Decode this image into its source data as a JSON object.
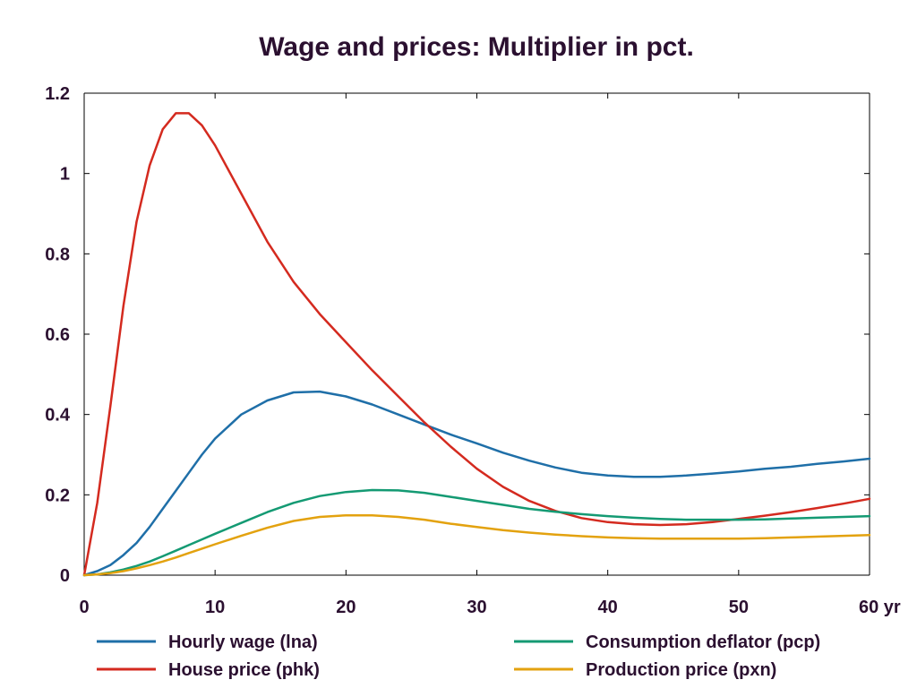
{
  "chart_data": {
    "type": "line",
    "title": "Wage and prices: Multiplier in pct.",
    "xlabel": "",
    "ylabel": "",
    "x_unit_label": "yr",
    "xlim": [
      0,
      60
    ],
    "ylim": [
      0,
      1.2
    ],
    "x_ticks": [
      0,
      10,
      20,
      30,
      40,
      50,
      60
    ],
    "x_tick_labels": [
      "0",
      "10",
      "20",
      "30",
      "40",
      "50",
      "60 yr"
    ],
    "y_ticks": [
      0,
      0.2,
      0.4,
      0.6,
      0.8,
      1.0,
      1.2
    ],
    "y_tick_labels": [
      "0",
      "0.2",
      "0.4",
      "0.6",
      "0.8",
      "1",
      "1.2"
    ],
    "grid": false,
    "legend_position": "bottom",
    "x": [
      0,
      1,
      2,
      3,
      4,
      5,
      6,
      7,
      8,
      9,
      10,
      12,
      14,
      16,
      18,
      20,
      22,
      24,
      26,
      28,
      30,
      32,
      34,
      36,
      38,
      40,
      42,
      44,
      46,
      48,
      50,
      52,
      54,
      56,
      58,
      60
    ],
    "series": [
      {
        "name": "Hourly wage (lna)",
        "color": "#1f6fa8",
        "values": [
          0,
          0.01,
          0.025,
          0.05,
          0.08,
          0.12,
          0.165,
          0.21,
          0.255,
          0.3,
          0.34,
          0.4,
          0.435,
          0.455,
          0.457,
          0.445,
          0.425,
          0.4,
          0.375,
          0.35,
          0.328,
          0.305,
          0.285,
          0.268,
          0.255,
          0.248,
          0.245,
          0.245,
          0.248,
          0.253,
          0.258,
          0.265,
          0.27,
          0.277,
          0.283,
          0.29
        ]
      },
      {
        "name": "House price (phk)",
        "color": "#d42a1f",
        "values": [
          0,
          0.18,
          0.42,
          0.67,
          0.88,
          1.02,
          1.11,
          1.15,
          1.15,
          1.12,
          1.07,
          0.95,
          0.83,
          0.73,
          0.65,
          0.58,
          0.51,
          0.445,
          0.38,
          0.32,
          0.265,
          0.22,
          0.185,
          0.16,
          0.142,
          0.132,
          0.127,
          0.125,
          0.127,
          0.132,
          0.14,
          0.148,
          0.157,
          0.167,
          0.178,
          0.19
        ]
      },
      {
        "name": "Consumption deflator (pcp)",
        "color": "#149a73",
        "values": [
          0,
          0.002,
          0.007,
          0.014,
          0.023,
          0.034,
          0.047,
          0.061,
          0.075,
          0.089,
          0.103,
          0.13,
          0.157,
          0.18,
          0.197,
          0.207,
          0.212,
          0.211,
          0.205,
          0.195,
          0.185,
          0.175,
          0.165,
          0.158,
          0.152,
          0.147,
          0.143,
          0.14,
          0.138,
          0.138,
          0.138,
          0.139,
          0.141,
          0.143,
          0.145,
          0.147
        ]
      },
      {
        "name": "Production price (pxn)",
        "color": "#e3a20f",
        "values": [
          0,
          0.002,
          0.005,
          0.01,
          0.017,
          0.025,
          0.034,
          0.044,
          0.055,
          0.066,
          0.077,
          0.098,
          0.118,
          0.135,
          0.145,
          0.149,
          0.149,
          0.145,
          0.138,
          0.128,
          0.12,
          0.112,
          0.106,
          0.101,
          0.097,
          0.094,
          0.092,
          0.091,
          0.091,
          0.091,
          0.091,
          0.092,
          0.094,
          0.096,
          0.098,
          0.1
        ]
      }
    ]
  }
}
